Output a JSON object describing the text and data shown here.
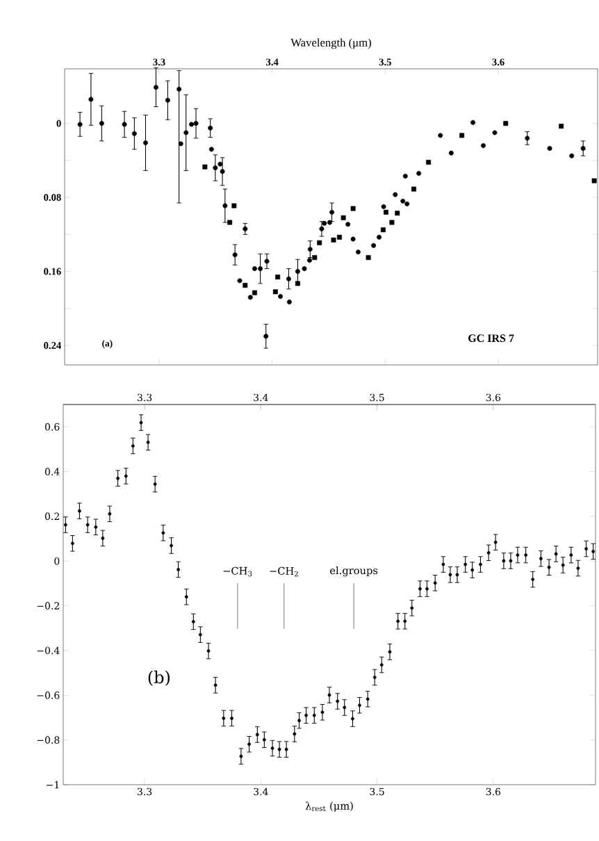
{
  "chart_data": [
    {
      "type": "scatter",
      "xlabel": "Wavelength (μm)",
      "xlim": [
        3.2164,
        3.6879
      ],
      "xticks": [
        3.3,
        3.4,
        3.5,
        3.6
      ],
      "ylim": [
        0.261,
        -0.059
      ],
      "yticks": [
        0,
        {
          "value": 0.04,
          "label": null
        },
        0.08,
        {
          "value": 0.12,
          "label": null
        },
        0.16,
        {
          "value": 0.2,
          "label": null
        },
        0.24
      ],
      "annotations": [
        "(a)",
        "GC IRS 7"
      ],
      "series": [
        {
          "color": "#000000",
          "marker": "circle",
          "x": [
            3.23,
            3.2397,
            3.2492,
            3.2693,
            3.2781,
            3.288,
            3.2972,
            3.3076,
            3.3176,
            3.3463,
            3.356,
            3.3761,
            3.3845,
            3.3953,
            3.4146,
            3.4226,
            3.4336,
            3.4438,
            3.4528,
            3.4986,
            3.5089,
            3.5178,
            3.5297,
            3.5488,
            3.5584,
            3.5776,
            3.5868,
            3.5969,
            3.6257,
            3.6455,
            3.665,
            3.6751
          ],
          "values": [
            0.001,
            -0.026,
            0.0,
            0.001,
            0.011,
            0.021,
            -0.039,
            -0.025,
            -0.037,
            0.028,
            0.052,
            0.114,
            0.157,
            0.149,
            0.168,
            0.16,
            0.136,
            0.114,
            0.096,
            0.09,
            0.077,
            0.057,
            0.054,
            0.013,
            0.032,
            -0.001,
            0.024,
            0.01,
            0.016,
            0.027,
            0.035,
            0.027
          ],
          "errors": [
            0.013,
            0.028,
            0.019,
            0.014,
            0.017,
            0.03,
            0.021,
            0.021,
            [
              -0.057,
              0.086
            ],
            null,
            0.015,
            0.006,
            null,
            0.008,
            0.011,
            0.013,
            0.009,
            0.008,
            0.01,
            null,
            null,
            null,
            null,
            null,
            null,
            null,
            null,
            null,
            0.007,
            null,
            null,
            0.008
          ]
        },
        {
          "color": "#000000",
          "marker": "square",
          "x": [
            3.3663,
            3.4049,
            3.4716,
            3.5383,
            3.5678,
            3.6066,
            3.6557,
            3.6849
          ],
          "values": [
            0.089,
            0.166,
            0.092,
            0.042,
            0.013,
            0.0,
            0.003,
            0.062
          ]
        },
        {
          "color": "#000000",
          "marker": "circle",
          "x": [
            3.3192,
            3.3238,
            3.3286,
            3.3326,
            3.3453,
            3.3497,
            3.354,
            3.3583,
            3.3671,
            3.3713,
            3.3807,
            3.3895,
            3.3945,
            3.4073,
            3.4152,
            3.4285,
            3.4331,
            3.4462,
            3.4509,
            3.467,
            3.4716,
            3.4761,
            3.4897,
            3.4946,
            3.5156,
            3.5193
          ],
          "values": [
            0.022,
            0.01,
            0.001,
            0.0,
            0.005,
            0.048,
            0.044,
            0.089,
            0.142,
            0.17,
            0.188,
            0.157,
            0.23,
            0.187,
            0.193,
            0.157,
            0.148,
            0.108,
            0.107,
            0.109,
            0.125,
            0.139,
            0.132,
            0.123,
            0.084,
            0.087
          ],
          "errors": [
            null,
            0.041,
            null,
            0.016,
            0.01,
            0.014,
            null,
            0.018,
            0.011,
            null,
            null,
            0.016,
            0.013,
            null,
            null,
            null,
            null,
            null,
            null,
            null,
            null,
            null,
            null,
            null,
            null,
            null
          ]
        },
        {
          "color": "#000000",
          "marker": "square",
          "x": [
            3.3405,
            3.3625,
            3.3761,
            3.3845,
            3.4029,
            3.4226,
            3.4376,
            3.4418,
            3.4543,
            3.4595,
            3.463,
            3.4851,
            3.4982,
            3.5007,
            3.5059,
            3.5107,
            3.5253
          ],
          "values": [
            0.047,
            0.107,
            0.175,
            0.183,
            0.182,
            0.173,
            0.145,
            0.129,
            0.126,
            0.123,
            0.102,
            0.145,
            0.115,
            0.096,
            0.107,
            0.097,
            0.071
          ]
        }
      ]
    },
    {
      "type": "scatter",
      "xlabel": "λ$_{rest}$ (μm)",
      "xlim": [
        3.23,
        3.688
      ],
      "xticks": [
        3.3,
        3.4,
        3.5,
        3.6
      ],
      "x2lim": [
        3.23,
        3.688
      ],
      "x2ticks": [
        3.3,
        3.4,
        3.5,
        3.6
      ],
      "ylim": [
        -1,
        0.7
      ],
      "yticks": [
        {
          "value": -1,
          "label": "−1"
        },
        {
          "value": -0.8,
          "label": "−0.8"
        },
        {
          "value": -0.6,
          "label": "−0.6"
        },
        {
          "value": -0.4,
          "label": "−0.4"
        },
        {
          "value": -0.2,
          "label": "−0.2"
        },
        0,
        0.2,
        0.4,
        0.6
      ],
      "annotations": [
        "(b)"
      ],
      "ref_lines": [
        {
          "axis": "x",
          "value": 3.38,
          "label": "−CH$_{3}$",
          "color": "#555555"
        },
        {
          "axis": "x",
          "value": 3.42,
          "label": "−CH$_{2}$",
          "color": "#555555"
        },
        {
          "axis": "x",
          "value": 3.48,
          "label": "el.groups",
          "color": "#555555"
        }
      ],
      "series": [
        {
          "color": "#000000",
          "marker": "circle",
          "x": [
            3.232,
            3.238,
            3.244,
            3.251,
            3.258,
            3.264,
            3.27,
            3.277,
            3.284,
            3.29,
            3.297,
            3.303,
            3.309,
            3.316,
            3.323,
            3.329,
            3.336,
            3.342,
            3.348,
            3.355,
            3.361,
            3.368,
            3.375,
            3.383,
            3.39,
            3.397,
            3.403,
            3.41,
            3.416,
            3.422,
            3.429,
            3.433,
            3.439,
            3.446,
            3.453,
            3.459,
            3.466,
            3.472,
            3.479,
            3.485,
            3.492,
            3.498,
            3.504,
            3.511,
            3.518,
            3.524,
            3.53,
            3.537,
            3.543,
            3.55,
            3.557,
            3.563,
            3.569,
            3.576,
            3.582,
            3.589,
            3.596,
            3.602,
            3.609,
            3.615,
            3.621,
            3.628,
            3.634,
            3.641,
            3.648,
            3.654,
            3.66,
            3.667,
            3.673,
            3.68,
            3.686
          ],
          "values": [
            0.162,
            0.079,
            0.224,
            0.162,
            0.152,
            0.102,
            0.211,
            0.37,
            0.38,
            0.515,
            0.619,
            0.531,
            0.344,
            0.126,
            0.069,
            -0.038,
            -0.16,
            -0.271,
            -0.329,
            -0.402,
            -0.555,
            -0.703,
            -0.703,
            -0.873,
            -0.819,
            -0.776,
            -0.799,
            -0.837,
            -0.842,
            -0.842,
            -0.773,
            -0.713,
            -0.69,
            -0.69,
            -0.676,
            -0.599,
            -0.627,
            -0.655,
            -0.705,
            -0.645,
            -0.617,
            -0.52,
            -0.464,
            -0.406,
            -0.269,
            -0.269,
            -0.21,
            -0.124,
            -0.124,
            -0.098,
            -0.015,
            -0.061,
            -0.061,
            -0.015,
            -0.04,
            -0.015,
            0.037,
            0.084,
            0.001,
            0.001,
            0.027,
            0.027,
            -0.082,
            0.011,
            -0.028,
            0.032,
            -0.018,
            0.027,
            -0.032,
            0.055,
            0.043
          ],
          "errors": [
            0.035,
            0.035,
            0.035,
            0.035,
            0.035,
            0.035,
            0.035,
            0.035,
            0.035,
            0.035,
            0.035,
            0.035,
            0.035,
            0.035,
            0.035,
            0.035,
            0.035,
            0.035,
            0.035,
            0.035,
            0.035,
            0.035,
            0.035,
            0.035,
            0.035,
            0.035,
            0.035,
            0.035,
            0.035,
            0.035,
            0.035,
            0.035,
            0.035,
            0.035,
            0.035,
            0.035,
            0.035,
            0.035,
            0.035,
            0.035,
            0.035,
            0.035,
            0.035,
            0.035,
            0.035,
            0.035,
            0.035,
            0.035,
            0.035,
            0.035,
            0.035,
            0.035,
            0.035,
            0.035,
            0.035,
            0.035,
            0.035,
            0.035,
            0.035,
            0.035,
            0.035,
            0.035,
            0.035,
            0.035,
            0.035,
            0.035,
            0.035,
            0.035,
            0.035,
            0.035,
            0.035
          ]
        }
      ]
    }
  ]
}
